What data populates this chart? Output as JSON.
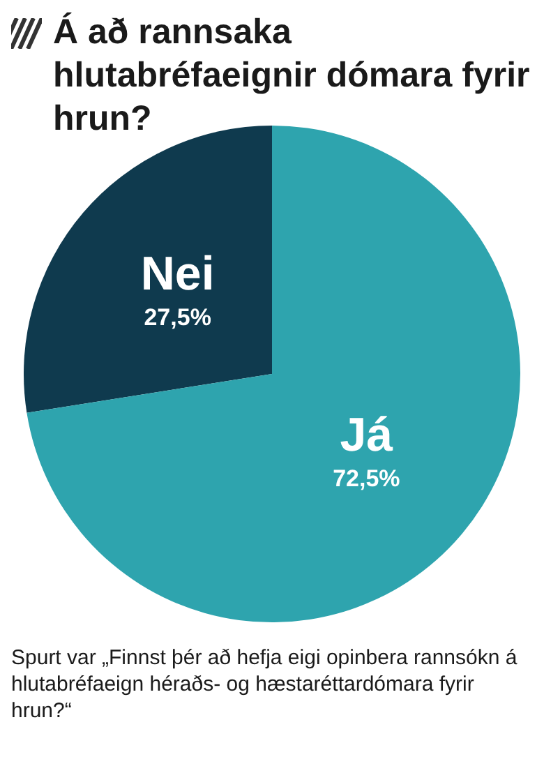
{
  "chart_data": {
    "type": "pie",
    "title": "Á að rannsaka hlutabréfaeignir dómara fyrir hrun?",
    "categories": [
      "Nei",
      "Já"
    ],
    "values": [
      27.5,
      72.5
    ],
    "colors": [
      "#0f3a4e",
      "#2ea4ae"
    ],
    "value_labels": [
      "27,5%",
      "72,5%"
    ],
    "legend": false,
    "annotations": [
      "Spurt var „Finnst þér að hefja eigi opinbera rannsókn á hlutabréfaeign héraðs- og hæstaréttardómara fyrir hrun?“"
    ]
  }
}
